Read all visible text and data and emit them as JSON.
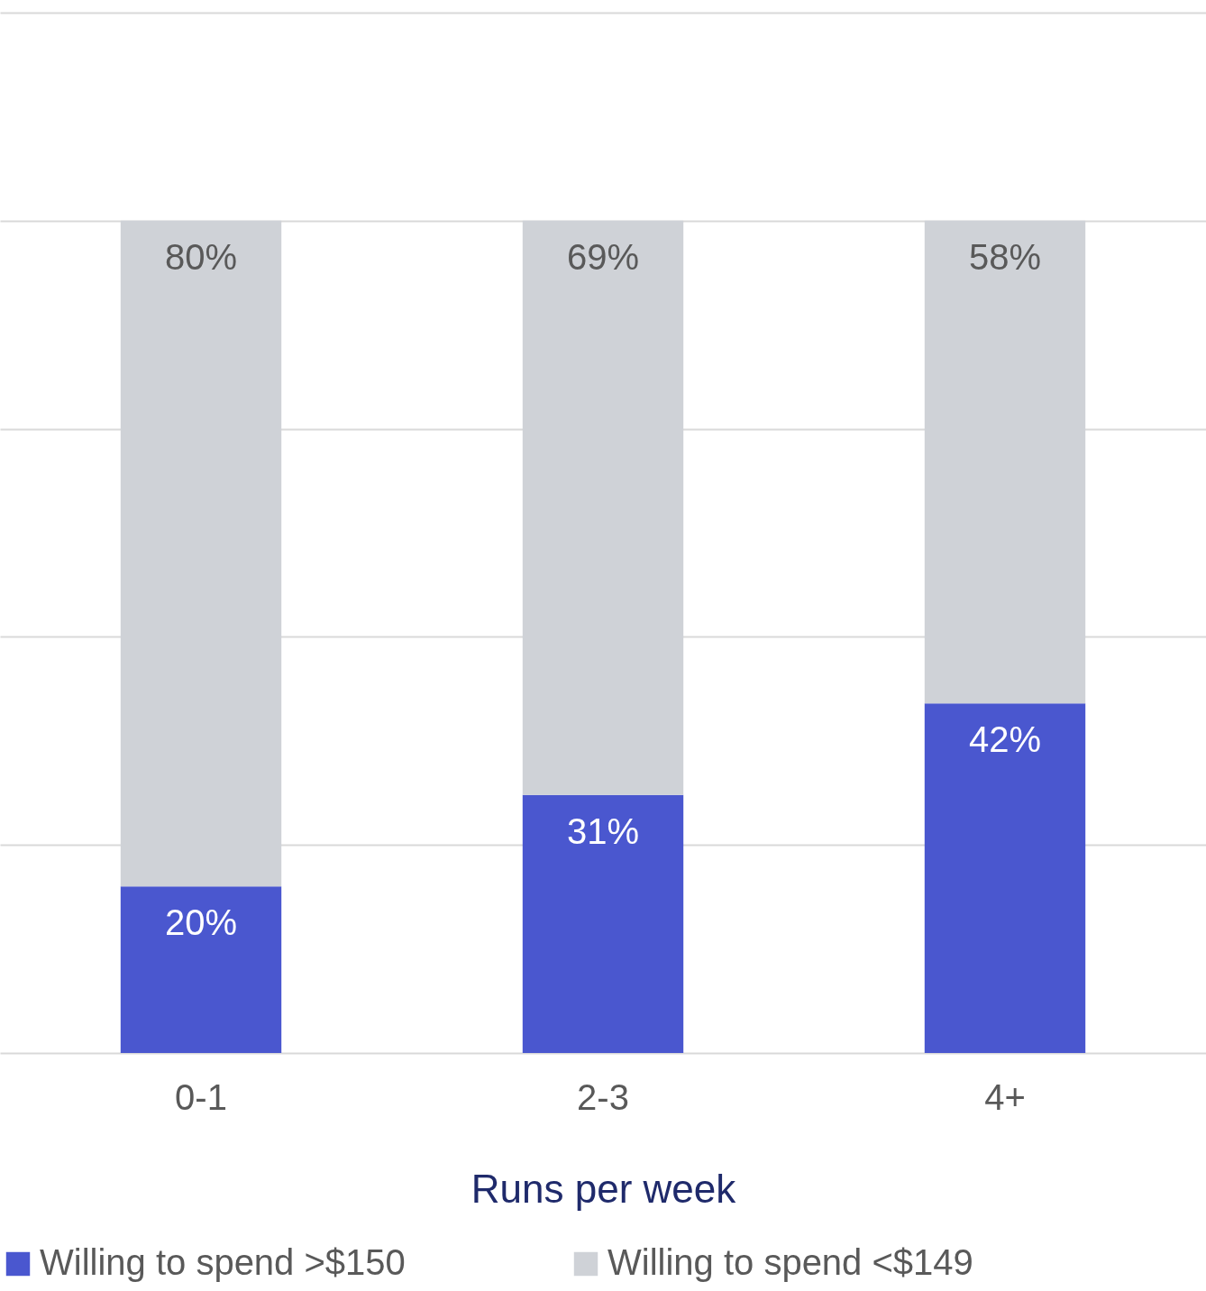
{
  "chart_data": {
    "type": "bar",
    "stacked": true,
    "xlabel": "Runs per week",
    "categories": [
      "0-1",
      "2-3",
      "4+"
    ],
    "series": [
      {
        "name": "Willing to spend >$150",
        "color": "#4a57cf",
        "values": [
          20,
          31,
          42
        ],
        "value_labels": [
          "20%",
          "31%",
          "42%"
        ]
      },
      {
        "name": "Willing to spend <$149",
        "color": "#cfd2d7",
        "values": [
          80,
          69,
          58
        ],
        "value_labels": [
          "80%",
          "69%",
          "58%"
        ]
      }
    ],
    "ylim": [
      0,
      125
    ],
    "yticks": [
      0,
      25,
      50,
      75,
      100,
      125
    ],
    "grid": "y",
    "tick_labels": "x",
    "legend": "bottom"
  }
}
